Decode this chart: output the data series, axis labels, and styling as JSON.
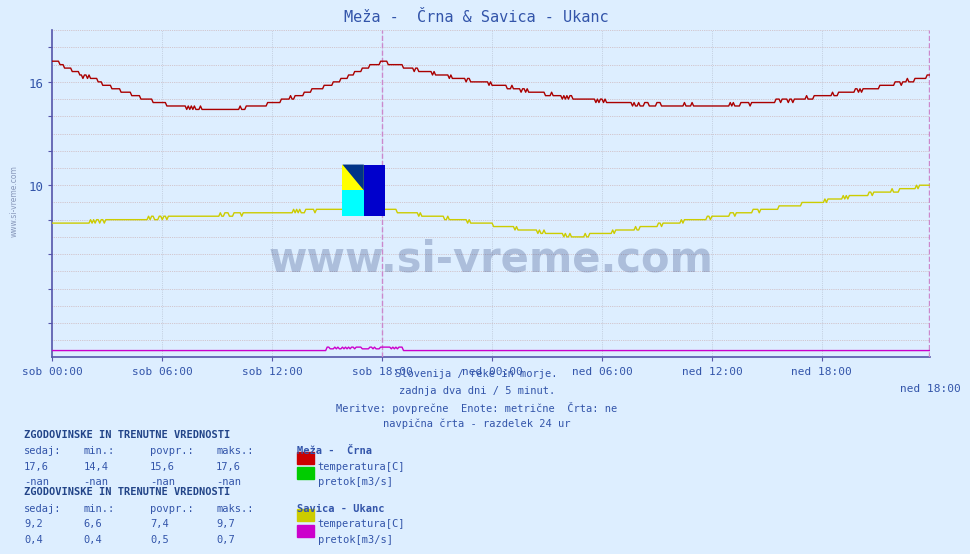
{
  "title": "Meža -  Črna & Savica - Ukanc",
  "bg_color": "#ddeeff",
  "plot_bg_color": "#ddeeff",
  "grid_color_dotted": "#b0b8d0",
  "axis_color": "#5555aa",
  "text_color": "#3355aa",
  "watermark": "www.si-vreme.com",
  "n_points": 576,
  "ylim": [
    0,
    19
  ],
  "xlim": [
    0,
    575
  ],
  "vertical_line_x": 216,
  "vertical_line2_x": 574,
  "meza_crna_temp_color": "#aa0000",
  "meza_crna_flow_color": "#00aa00",
  "savica_ukanc_temp_color": "#cccc00",
  "savica_ukanc_flow_color": "#cc00cc",
  "info_lines": [
    "Slovenija / reke in morje.",
    "zadnja dva dni / 5 minut.",
    "Meritve: povprečne  Enote: metrične  Črta: ne",
    "navpična črta - razdelek 24 ur"
  ],
  "section1_title": "ZGODOVINSKE IN TRENUTNE VREDNOSTI",
  "section1_headers": [
    "sedaj:",
    "min.:",
    "povpr.:",
    "maks.:"
  ],
  "section1_station": "Meža -  Črna",
  "section1_row1": [
    "17,6",
    "14,4",
    "15,6",
    "17,6"
  ],
  "section1_row1_label": "temperatura[C]",
  "section1_row1_color": "#cc0000",
  "section1_row2": [
    "-nan",
    "-nan",
    "-nan",
    "-nan"
  ],
  "section1_row2_label": "pretok[m3/s]",
  "section1_row2_color": "#00cc00",
  "section2_title": "ZGODOVINSKE IN TRENUTNE VREDNOSTI",
  "section2_headers": [
    "sedaj:",
    "min.:",
    "povpr.:",
    "maks.:"
  ],
  "section2_station": "Savica - Ukanc",
  "section2_row1": [
    "9,2",
    "6,6",
    "7,4",
    "9,7"
  ],
  "section2_row1_label": "temperatura[C]",
  "section2_row1_color": "#cccc00",
  "section2_row2": [
    "0,4",
    "0,4",
    "0,5",
    "0,7"
  ],
  "section2_row2_label": "pretok[m3/s]",
  "section2_row2_color": "#cc00cc",
  "x_tick_positions": [
    0,
    72,
    144,
    216,
    288,
    360,
    432,
    504,
    575
  ],
  "x_tick_labels": [
    "sob 00:00",
    "sob 06:00",
    "sob 12:00",
    "sob 18:00",
    "ned 00:00",
    "ned 06:00",
    "ned 12:00",
    "ned 18:00",
    "ned 18:00"
  ]
}
